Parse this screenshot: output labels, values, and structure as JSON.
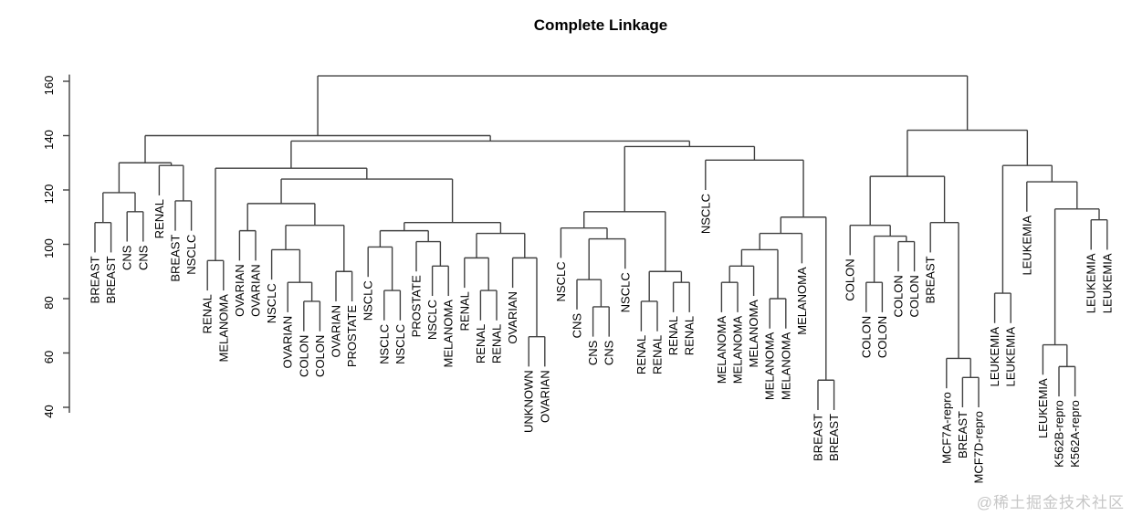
{
  "title": "Complete Linkage",
  "watermark": "@稀土掘金技术社区",
  "colors": {
    "line": "#404040",
    "label": "#000000",
    "axis": "#000000",
    "watermark": "#c7c7c7",
    "background": "#ffffff"
  },
  "chart_data": {
    "type": "dendrogram",
    "title": "Complete Linkage",
    "ylabel": "",
    "xlabel": "",
    "yticks": [
      40,
      60,
      80,
      100,
      120,
      140,
      160
    ],
    "ylim": [
      38,
      163
    ],
    "grid": false,
    "legend": "none",
    "leaf_count": 64,
    "leaf_labels": [
      "BREAST",
      "BREAST",
      "CNS",
      "CNS",
      "RENAL",
      "BREAST",
      "NSCLC",
      "RENAL",
      "MELANOMA",
      "OVARIAN",
      "OVARIAN",
      "NSCLC",
      "OVARIAN",
      "COLON",
      "COLON",
      "OVARIAN",
      "PROSTATE",
      "NSCLC",
      "NSCLC",
      "NSCLC",
      "PROSTATE",
      "NSCLC",
      "MELANOMA",
      "RENAL",
      "RENAL",
      "RENAL",
      "OVARIAN",
      "UNKNOWN",
      "OVARIAN",
      "NSCLC",
      "CNS",
      "CNS",
      "CNS",
      "NSCLC",
      "RENAL",
      "RENAL",
      "RENAL",
      "RENAL",
      "NSCLC",
      "MELANOMA",
      "MELANOMA",
      "MELANOMA",
      "MELANOMA",
      "MELANOMA",
      "MELANOMA",
      "BREAST",
      "BREAST",
      "COLON",
      "COLON",
      "COLON",
      "COLON",
      "COLON",
      "BREAST",
      "MCF7A-repro",
      "BREAST",
      "MCF7D-repro",
      "LEUKEMIA",
      "LEUKEMIA",
      "LEUKEMIA",
      "LEUKEMIA",
      "K562B-repro",
      "K562A-repro",
      "LEUKEMIA",
      "LEUKEMIA"
    ],
    "merge_height_note": "heights in same units as y axis; leaves are indexes into leaf_labels",
    "tree": {
      "h": 162,
      "c": [
        {
          "h": 140,
          "c": [
            {
              "h": 130,
              "c": [
                {
                  "h": 119,
                  "c": [
                    {
                      "h": 108,
                      "c": [
                        0,
                        1
                      ]
                    },
                    {
                      "h": 112,
                      "c": [
                        2,
                        3
                      ]
                    }
                  ]
                },
                {
                  "h": 129,
                  "c": [
                    4,
                    {
                      "h": 116,
                      "c": [
                        5,
                        6
                      ]
                    }
                  ]
                }
              ]
            },
            {
              "h": 138,
              "c": [
                {
                  "h": 128,
                  "c": [
                    {
                      "h": 94,
                      "c": [
                        7,
                        8
                      ]
                    },
                    {
                      "h": 124,
                      "c": [
                        {
                          "h": 115,
                          "c": [
                            {
                              "h": 105,
                              "c": [
                                9,
                                10
                              ]
                            },
                            {
                              "h": 107,
                              "c": [
                                {
                                  "h": 98,
                                  "c": [
                                    11,
                                    {
                                      "h": 86,
                                      "c": [
                                        12,
                                        {
                                          "h": 79,
                                          "c": [
                                            13,
                                            14
                                          ]
                                        }
                                      ]
                                    }
                                  ]
                                },
                                {
                                  "h": 90,
                                  "c": [
                                    15,
                                    16
                                  ]
                                }
                              ]
                            }
                          ]
                        },
                        {
                          "h": 108,
                          "c": [
                            {
                              "h": 105,
                              "c": [
                                {
                                  "h": 99,
                                  "c": [
                                    17,
                                    {
                                      "h": 83,
                                      "c": [
                                        18,
                                        19
                                      ]
                                    }
                                  ]
                                },
                                {
                                  "h": 101,
                                  "c": [
                                    20,
                                    {
                                      "h": 92,
                                      "c": [
                                        21,
                                        22
                                      ]
                                    }
                                  ]
                                }
                              ]
                            },
                            {
                              "h": 104,
                              "c": [
                                {
                                  "h": 95,
                                  "c": [
                                    23,
                                    {
                                      "h": 83,
                                      "c": [
                                        24,
                                        25
                                      ]
                                    }
                                  ]
                                },
                                {
                                  "h": 95,
                                  "c": [
                                    26,
                                    {
                                      "h": 66,
                                      "c": [
                                        27,
                                        28
                                      ]
                                    }
                                  ]
                                }
                              ]
                            }
                          ]
                        }
                      ]
                    }
                  ]
                },
                {
                  "h": 136,
                  "c": [
                    {
                      "h": 112,
                      "c": [
                        {
                          "h": 106,
                          "c": [
                            29,
                            {
                              "h": 102,
                              "c": [
                                {
                                  "h": 87,
                                  "c": [
                                    30,
                                    {
                                      "h": 77,
                                      "c": [
                                        31,
                                        32
                                      ]
                                    }
                                  ]
                                },
                                33
                              ]
                            }
                          ]
                        },
                        {
                          "h": 90,
                          "c": [
                            {
                              "h": 79,
                              "c": [
                                34,
                                35
                              ]
                            },
                            {
                              "h": 86,
                              "c": [
                                36,
                                37
                              ]
                            }
                          ]
                        }
                      ]
                    },
                    {
                      "h": 131,
                      "c": [
                        38,
                        {
                          "h": 110,
                          "c": [
                            {
                              "h": 104,
                              "c": [
                                {
                                  "h": 98,
                                  "c": [
                                    {
                                      "h": 92,
                                      "c": [
                                        {
                                          "h": 86,
                                          "c": [
                                            39,
                                            40
                                          ]
                                        },
                                        41
                                      ]
                                    },
                                    {
                                      "h": 80,
                                      "c": [
                                        42,
                                        43
                                      ]
                                    }
                                  ]
                                },
                                44
                              ]
                            },
                            {
                              "h": 50,
                              "c": [
                                45,
                                46
                              ]
                            }
                          ]
                        }
                      ]
                    }
                  ]
                }
              ]
            }
          ]
        },
        {
          "h": 142,
          "c": [
            {
              "h": 125,
              "c": [
                {
                  "h": 107,
                  "c": [
                    47,
                    {
                      "h": 103,
                      "c": [
                        {
                          "h": 86,
                          "c": [
                            48,
                            49
                          ]
                        },
                        {
                          "h": 101,
                          "c": [
                            50,
                            51
                          ]
                        }
                      ]
                    }
                  ]
                },
                {
                  "h": 108,
                  "c": [
                    52,
                    {
                      "h": 58,
                      "c": [
                        53,
                        {
                          "h": 51,
                          "c": [
                            54,
                            55
                          ]
                        }
                      ]
                    }
                  ]
                }
              ]
            },
            {
              "h": 129,
              "c": [
                {
                  "h": 82,
                  "c": [
                    56,
                    57
                  ]
                },
                {
                  "h": 123,
                  "c": [
                    58,
                    {
                      "h": 113,
                      "c": [
                        {
                          "h": 63,
                          "c": [
                            59,
                            {
                              "h": 55,
                              "c": [
                                60,
                                61
                              ]
                            }
                          ]
                        },
                        {
                          "h": 109,
                          "c": [
                            62,
                            63
                          ]
                        }
                      ]
                    }
                  ]
                }
              ]
            }
          ]
        }
      ]
    }
  }
}
